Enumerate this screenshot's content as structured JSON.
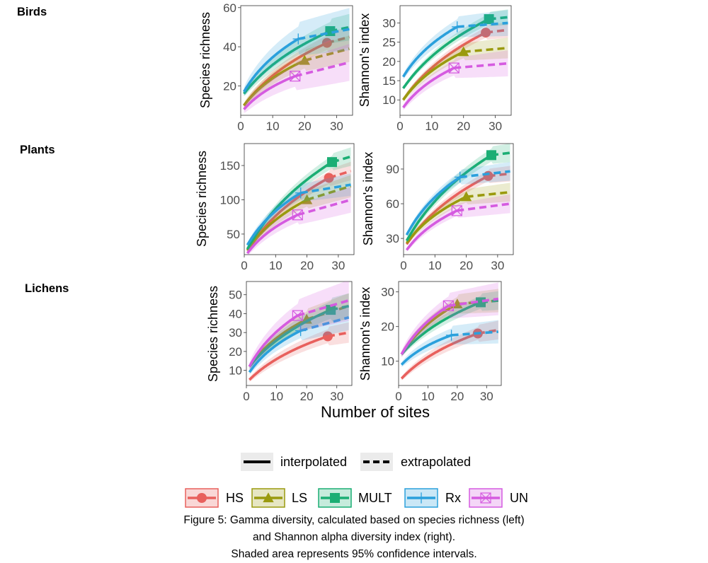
{
  "figure": {
    "x_axis_title": "Number of sites",
    "row_labels": [
      "Birds",
      "Plants",
      "Lichens"
    ],
    "caption": [
      "Figure 5: Gamma diversity, calculated based on species richness (left)",
      "and Shannon alpha diversity index (right).",
      "Shaded area represents 95% confidence intervals."
    ]
  },
  "legend": {
    "linetypes": [
      {
        "label": "interpolated",
        "style": "solid"
      },
      {
        "label": "extrapolated",
        "style": "dashed"
      }
    ],
    "groups": [
      {
        "key": "HS",
        "label": "HS",
        "color": "#E8605D",
        "shape": "circle"
      },
      {
        "key": "LS",
        "label": "LS",
        "color": "#9A9A0E",
        "shape": "triangle"
      },
      {
        "key": "MULT",
        "label": "MULT",
        "color": "#1BAE74",
        "shape": "square"
      },
      {
        "key": "Rx",
        "label": "Rx",
        "color": "#2BA0DC",
        "shape": "plus"
      },
      {
        "key": "UN",
        "label": "UN",
        "color": "#D55BE0",
        "shape": "boxx"
      }
    ]
  },
  "chart_data": [
    {
      "type": "line",
      "row": "Birds",
      "ylabel": "Species richness",
      "xlim": [
        0,
        35
      ],
      "ylim": [
        5,
        61
      ],
      "xticks": [
        0,
        10,
        20,
        30
      ],
      "yticks": [
        20,
        40,
        60
      ],
      "series": [
        {
          "group": "HS",
          "observed_x": 27,
          "observed_y": 42,
          "start_y": 10,
          "end_y": 45,
          "ci": 4
        },
        {
          "group": "LS",
          "observed_x": 20,
          "observed_y": 33,
          "start_y": 10,
          "end_y": 39,
          "ci": 5
        },
        {
          "group": "MULT",
          "observed_x": 28,
          "observed_y": 48,
          "start_y": 16,
          "end_y": 50,
          "ci": 5
        },
        {
          "group": "Rx",
          "observed_x": 18,
          "observed_y": 44,
          "start_y": 17,
          "end_y": 49,
          "ci": 8
        },
        {
          "group": "UN",
          "observed_x": 17,
          "observed_y": 25,
          "start_y": 8,
          "end_y": 32,
          "ci": 7
        }
      ]
    },
    {
      "type": "line",
      "row": "Birds",
      "ylabel": "Shannon's index",
      "xlim": [
        0,
        35
      ],
      "ylim": [
        6,
        34.5
      ],
      "xticks": [
        0,
        10,
        20,
        30
      ],
      "yticks": [
        10,
        15,
        20,
        25,
        30
      ],
      "series": [
        {
          "group": "HS",
          "observed_x": 27,
          "observed_y": 27.5,
          "start_y": 10,
          "end_y": 28.2,
          "ci": 1.5
        },
        {
          "group": "LS",
          "observed_x": 20,
          "observed_y": 22.5,
          "start_y": 10,
          "end_y": 23.5,
          "ci": 2
        },
        {
          "group": "MULT",
          "observed_x": 28,
          "observed_y": 31,
          "start_y": 13,
          "end_y": 31.5,
          "ci": 1.5
        },
        {
          "group": "Rx",
          "observed_x": 18,
          "observed_y": 29,
          "start_y": 16,
          "end_y": 30,
          "ci": 2.5
        },
        {
          "group": "UN",
          "observed_x": 17,
          "observed_y": 18.3,
          "start_y": 8,
          "end_y": 19.5,
          "ci": 2.5
        }
      ]
    },
    {
      "type": "line",
      "row": "Plants",
      "ylabel": "Species richness",
      "xlim": [
        0,
        35
      ],
      "ylim": [
        20,
        182
      ],
      "xticks": [
        0,
        10,
        20,
        30
      ],
      "yticks": [
        50,
        100,
        150
      ],
      "series": [
        {
          "group": "HS",
          "observed_x": 27,
          "observed_y": 132,
          "start_y": 26,
          "end_y": 142,
          "ci": 10
        },
        {
          "group": "LS",
          "observed_x": 20,
          "observed_y": 100,
          "start_y": 26,
          "end_y": 120,
          "ci": 12
        },
        {
          "group": "MULT",
          "observed_x": 28,
          "observed_y": 155,
          "start_y": 28,
          "end_y": 163,
          "ci": 10
        },
        {
          "group": "Rx",
          "observed_x": 18,
          "observed_y": 110,
          "start_y": 34,
          "end_y": 122,
          "ci": 12
        },
        {
          "group": "UN",
          "observed_x": 17,
          "observed_y": 78,
          "start_y": 22,
          "end_y": 100,
          "ci": 14
        }
      ]
    },
    {
      "type": "line",
      "row": "Plants",
      "ylabel": "Shannon's index",
      "xlim": [
        0,
        35
      ],
      "ylim": [
        16,
        112
      ],
      "xticks": [
        0,
        10,
        20,
        30
      ],
      "yticks": [
        30,
        60,
        90
      ],
      "series": [
        {
          "group": "HS",
          "observed_x": 27,
          "observed_y": 84,
          "start_y": 25,
          "end_y": 86,
          "ci": 5
        },
        {
          "group": "LS",
          "observed_x": 20,
          "observed_y": 66,
          "start_y": 26,
          "end_y": 70,
          "ci": 6
        },
        {
          "group": "MULT",
          "observed_x": 28,
          "observed_y": 102,
          "start_y": 28,
          "end_y": 104,
          "ci": 6
        },
        {
          "group": "Rx",
          "observed_x": 18,
          "observed_y": 83,
          "start_y": 33,
          "end_y": 88,
          "ci": 6
        },
        {
          "group": "UN",
          "observed_x": 17,
          "observed_y": 54,
          "start_y": 20,
          "end_y": 60,
          "ci": 6
        }
      ]
    },
    {
      "type": "line",
      "row": "Lichens",
      "ylabel": "Species richness",
      "xlim": [
        0,
        35
      ],
      "ylim": [
        2,
        57
      ],
      "xticks": [
        0,
        10,
        20,
        30
      ],
      "yticks": [
        10,
        20,
        30,
        40,
        50
      ],
      "series": [
        {
          "group": "HS",
          "observed_x": 27,
          "observed_y": 28,
          "start_y": 5,
          "end_y": 30,
          "ci": 4
        },
        {
          "group": "LS",
          "observed_x": 20,
          "observed_y": 37,
          "start_y": 12,
          "end_y": 44,
          "ci": 5
        },
        {
          "group": "MULT",
          "observed_x": 28,
          "observed_y": 42,
          "start_y": 12,
          "end_y": 44,
          "ci": 5
        },
        {
          "group": "Rx",
          "observed_x": 18,
          "observed_y": 31,
          "start_y": 9,
          "end_y": 38,
          "ci": 5
        },
        {
          "group": "UN",
          "observed_x": 17,
          "observed_y": 39,
          "start_y": 12,
          "end_y": 47,
          "ci": 8
        }
      ]
    },
    {
      "type": "line",
      "row": "Lichens",
      "ylabel": "Shannon's index",
      "xlim": [
        0,
        35
      ],
      "ylim": [
        3,
        33
      ],
      "xticks": [
        0,
        10,
        20,
        30
      ],
      "yticks": [
        10,
        20,
        30
      ],
      "series": [
        {
          "group": "HS",
          "observed_x": 27,
          "observed_y": 18,
          "start_y": 5,
          "end_y": 19,
          "ci": 2
        },
        {
          "group": "LS",
          "observed_x": 20,
          "observed_y": 26.5,
          "start_y": 12,
          "end_y": 27.5,
          "ci": 2.5
        },
        {
          "group": "MULT",
          "observed_x": 28,
          "observed_y": 27,
          "start_y": 12,
          "end_y": 27.5,
          "ci": 2
        },
        {
          "group": "Rx",
          "observed_x": 18,
          "observed_y": 17.5,
          "start_y": 9,
          "end_y": 18.5,
          "ci": 2.5
        },
        {
          "group": "UN",
          "observed_x": 17,
          "observed_y": 26,
          "start_y": 12,
          "end_y": 28,
          "ci": 3.5
        }
      ]
    }
  ]
}
